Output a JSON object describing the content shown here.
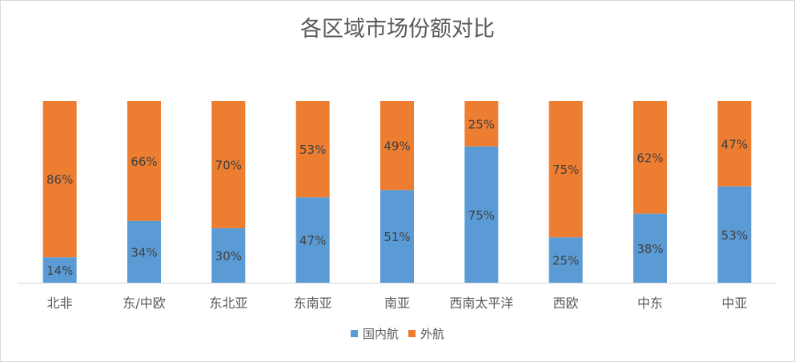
{
  "chart_data": {
    "type": "bar",
    "stacked": true,
    "percent_stacked": true,
    "title": "各区域市场份额对比",
    "categories": [
      "北非",
      "东/中欧",
      "东北亚",
      "东南亚",
      "南亚",
      "西南太平洋",
      "西欧",
      "中东",
      "中亚"
    ],
    "series": [
      {
        "name": "国内航",
        "color": "#5b9bd5",
        "values": [
          14,
          34,
          30,
          47,
          51,
          75,
          25,
          38,
          53
        ]
      },
      {
        "name": "外航",
        "color": "#ed7d31",
        "values": [
          86,
          66,
          70,
          53,
          49,
          25,
          75,
          62,
          47
        ]
      }
    ],
    "value_suffix": "%",
    "ylim": [
      0,
      100
    ],
    "gridlines": false,
    "legend_position": "bottom"
  }
}
